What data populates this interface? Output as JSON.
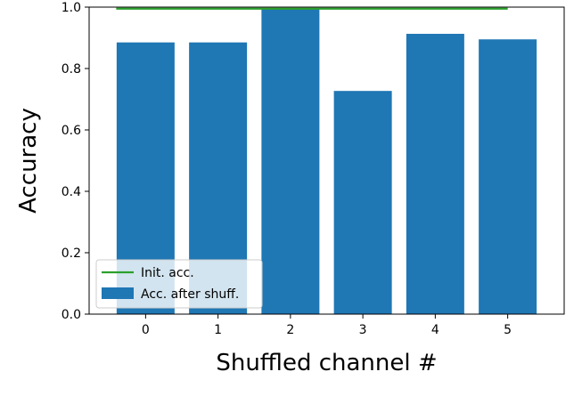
{
  "chart_data": {
    "type": "bar",
    "title": "",
    "xlabel": "Shuffled channel #",
    "ylabel": "Accuracy",
    "categories": [
      "0",
      "1",
      "2",
      "3",
      "4",
      "5"
    ],
    "series": [
      {
        "name": "Acc. after shuff.",
        "type": "bar",
        "color": "#1f77b4",
        "values": [
          0.885,
          0.885,
          0.995,
          0.727,
          0.913,
          0.895
        ]
      },
      {
        "name": "Init. acc.",
        "type": "line",
        "color": "#2ca02c",
        "value": 0.995
      }
    ],
    "ylim": [
      0.0,
      1.0
    ],
    "yticks": [
      "0.0",
      "0.2",
      "0.4",
      "0.6",
      "0.8",
      "1.0"
    ],
    "grid": false,
    "legend_position": "lower-left"
  }
}
